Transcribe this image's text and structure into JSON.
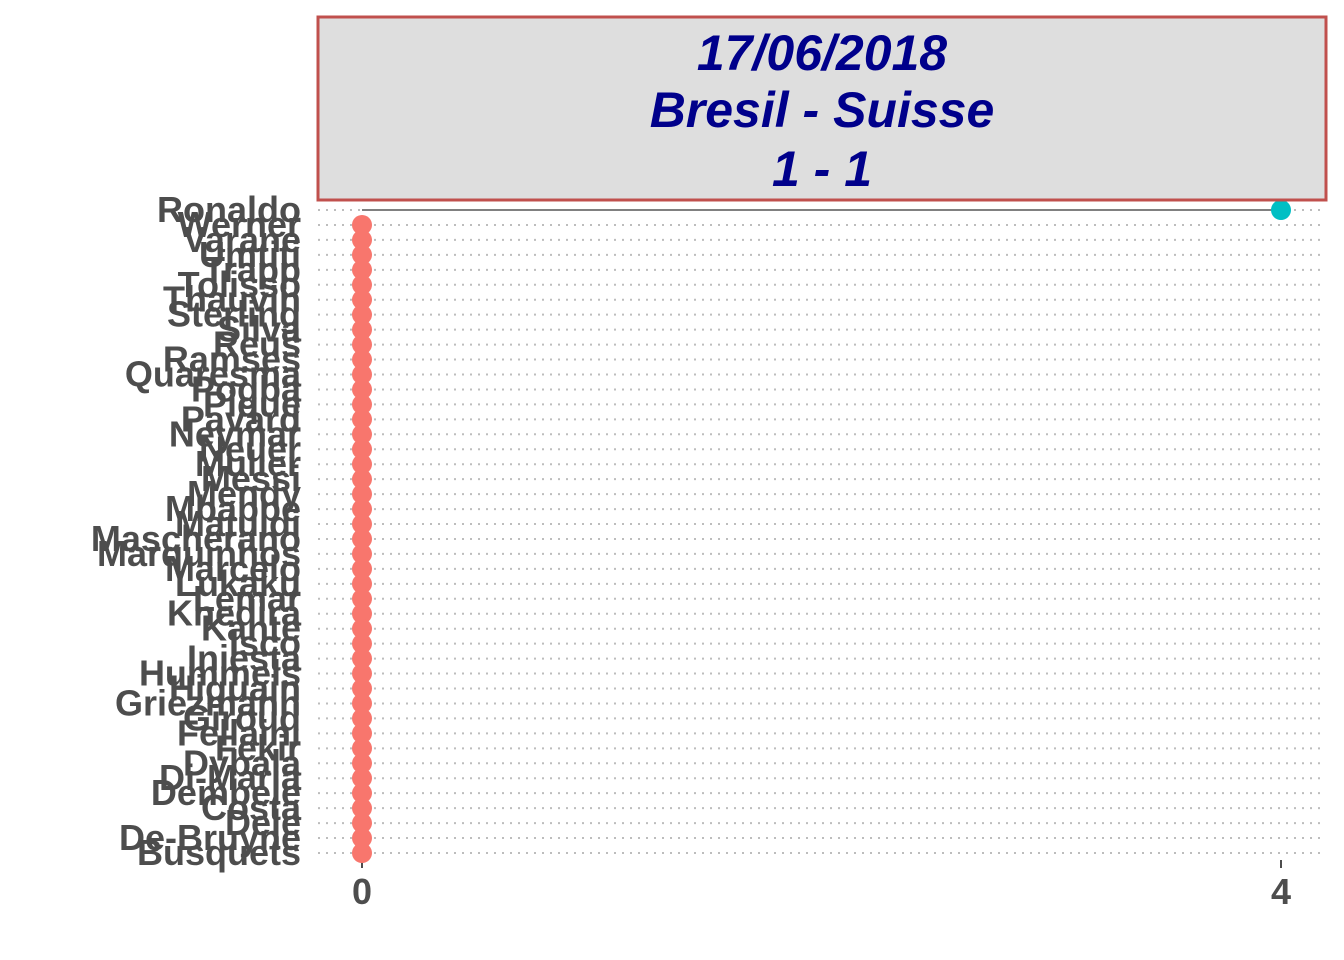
{
  "chart_data": {
    "type": "scatter",
    "title_lines": [
      "17/06/2018",
      "Bresil - Suisse",
      "1 - 1"
    ],
    "xlabel": "",
    "ylabel": "",
    "xlim": [
      0,
      4
    ],
    "x_ticks": [
      "0",
      "4"
    ],
    "grid": true,
    "legend": "none",
    "colors": {
      "zero": "#f8766d",
      "positive": "#00bfc4",
      "segment": "#808080",
      "title_text": "#00008b",
      "title_bg": "#dedede",
      "title_border": "#c0504d",
      "grid": "#bdbdbd"
    },
    "players": [
      {
        "name": "Ronaldo",
        "value": 4
      },
      {
        "name": "Werner",
        "value": 0
      },
      {
        "name": "Varane",
        "value": 0
      },
      {
        "name": "Umtiti",
        "value": 0
      },
      {
        "name": "Trapp",
        "value": 0
      },
      {
        "name": "Tolisso",
        "value": 0
      },
      {
        "name": "Thauvin",
        "value": 0
      },
      {
        "name": "Sterling",
        "value": 0
      },
      {
        "name": "Silva",
        "value": 0
      },
      {
        "name": "Reus",
        "value": 0
      },
      {
        "name": "Ramses",
        "value": 0
      },
      {
        "name": "Quaresma",
        "value": 0
      },
      {
        "name": "Pogba",
        "value": 0
      },
      {
        "name": "Pique",
        "value": 0
      },
      {
        "name": "Pavard",
        "value": 0
      },
      {
        "name": "Neymar",
        "value": 0
      },
      {
        "name": "Neuer",
        "value": 0
      },
      {
        "name": "Muller",
        "value": 0
      },
      {
        "name": "Messi",
        "value": 0
      },
      {
        "name": "Mendy",
        "value": 0
      },
      {
        "name": "Mbappe",
        "value": 0
      },
      {
        "name": "Matuidi",
        "value": 0
      },
      {
        "name": "Mascherano",
        "value": 0
      },
      {
        "name": "Marquinhos",
        "value": 0
      },
      {
        "name": "Marcelo",
        "value": 0
      },
      {
        "name": "Lukaku",
        "value": 0
      },
      {
        "name": "Lemar",
        "value": 0
      },
      {
        "name": "Khedira",
        "value": 0
      },
      {
        "name": "Kante",
        "value": 0
      },
      {
        "name": "Isco",
        "value": 0
      },
      {
        "name": "Iniesta",
        "value": 0
      },
      {
        "name": "Hummels",
        "value": 0
      },
      {
        "name": "Higuain",
        "value": 0
      },
      {
        "name": "Griezmann",
        "value": 0
      },
      {
        "name": "Giroud",
        "value": 0
      },
      {
        "name": "Fellaini",
        "value": 0
      },
      {
        "name": "Fekir",
        "value": 0
      },
      {
        "name": "Dybala",
        "value": 0
      },
      {
        "name": "Di-Maria",
        "value": 0
      },
      {
        "name": "Dembele",
        "value": 0
      },
      {
        "name": "Costa",
        "value": 0
      },
      {
        "name": "Dele",
        "value": 0
      },
      {
        "name": "De-Bruyne",
        "value": 0
      },
      {
        "name": "Busquets",
        "value": 0
      }
    ]
  }
}
